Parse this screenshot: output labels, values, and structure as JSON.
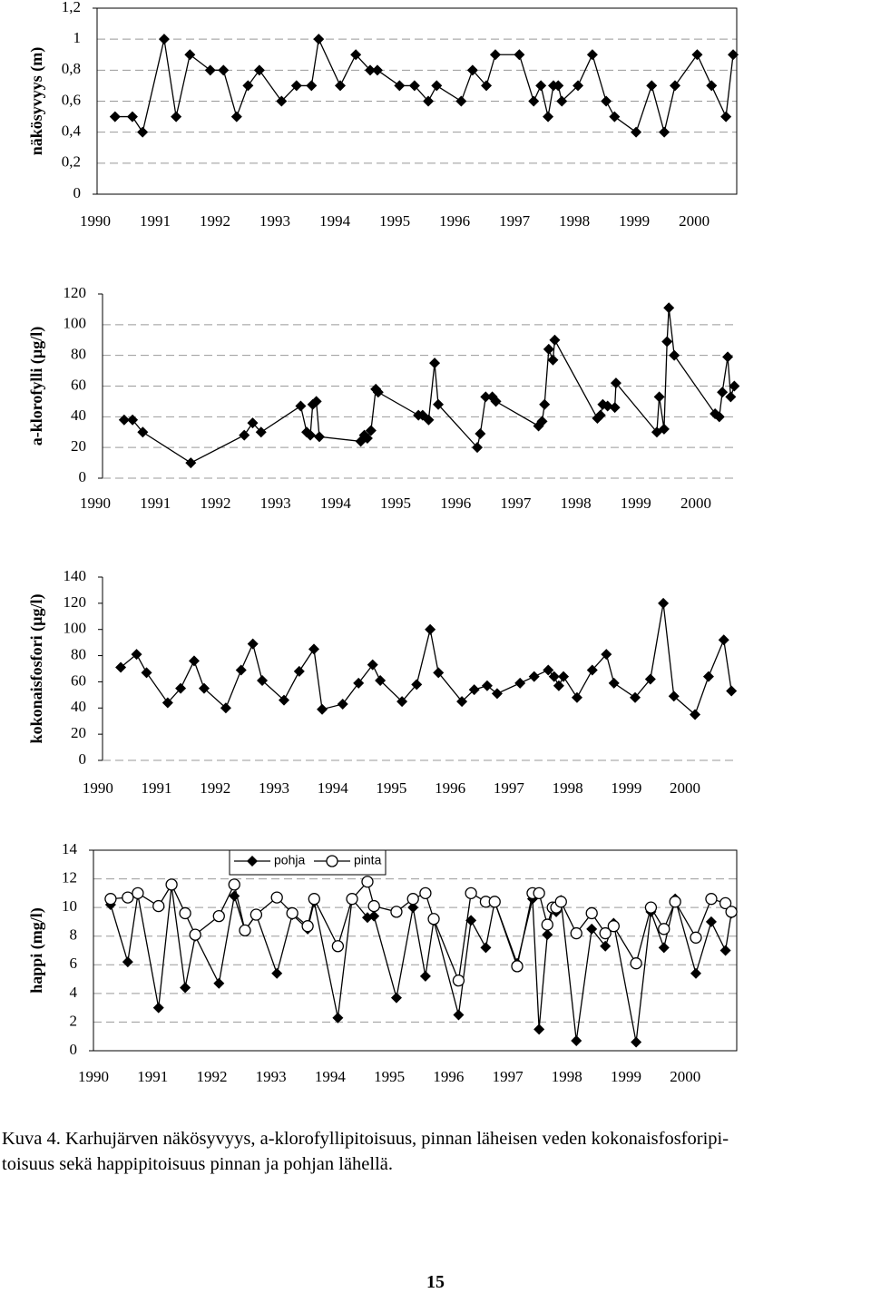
{
  "chart_data": [
    {
      "type": "line",
      "y_label": "näkösyvyys (m)",
      "color": "#000000",
      "marker": "diamond",
      "grid": true,
      "x": [
        1990.33,
        1990.62,
        1990.79,
        1991.15,
        1991.35,
        1991.58,
        1991.92,
        1992.14,
        1992.36,
        1992.55,
        1992.74,
        1993.11,
        1993.36,
        1993.61,
        1993.73,
        1994.09,
        1994.35,
        1994.59,
        1994.71,
        1995.08,
        1995.33,
        1995.56,
        1995.7,
        1996.11,
        1996.3,
        1996.53,
        1996.68,
        1997.08,
        1997.32,
        1997.44,
        1997.56,
        1997.65,
        1997.73,
        1997.79,
        1998.06,
        1998.3,
        1998.53,
        1998.67,
        1999.03,
        1999.29,
        1999.5,
        1999.68,
        2000.05,
        2000.29,
        2000.53,
        2000.65
      ],
      "values": [
        0.5,
        0.5,
        0.4,
        1.0,
        0.5,
        0.9,
        0.8,
        0.8,
        0.5,
        0.7,
        0.8,
        0.6,
        0.7,
        0.7,
        1.0,
        0.7,
        0.9,
        0.8,
        0.8,
        0.7,
        0.7,
        0.6,
        0.7,
        0.6,
        0.8,
        0.7,
        0.9,
        0.9,
        0.6,
        0.7,
        0.5,
        0.7,
        0.7,
        0.6,
        0.7,
        0.9,
        0.6,
        0.5,
        0.4,
        0.7,
        0.4,
        0.7,
        0.9,
        0.7,
        0.5,
        0.9
      ],
      "xlim": [
        1990.03,
        2000.71
      ],
      "xticks": [
        1990,
        1991,
        1992,
        1993,
        1994,
        1995,
        1996,
        1997,
        1998,
        1999,
        2000
      ],
      "ylim": [
        0,
        1.2
      ],
      "yticks": [
        0,
        {
          "value": 0.2,
          "label": "0,2"
        },
        {
          "value": 0.4,
          "label": "0,4"
        },
        {
          "value": 0.6,
          "label": "0,6"
        },
        {
          "value": 0.8,
          "label": "0,8"
        },
        1,
        {
          "value": 1.2,
          "label": "1,2"
        }
      ]
    },
    {
      "type": "line",
      "y_label": "a-klorofylli (µg/l)",
      "color": "#000000",
      "marker": "diamond",
      "grid": true,
      "x": [
        1990.48,
        1990.62,
        1990.79,
        1991.59,
        1992.48,
        1992.62,
        1992.76,
        1993.42,
        1993.52,
        1993.58,
        1993.62,
        1993.68,
        1993.73,
        1994.42,
        1994.48,
        1994.53,
        1994.59,
        1994.67,
        1994.71,
        1995.38,
        1995.45,
        1995.55,
        1995.65,
        1995.71,
        1996.36,
        1996.41,
        1996.5,
        1996.61,
        1996.67,
        1997.38,
        1997.44,
        1997.48,
        1997.55,
        1997.62,
        1997.65,
        1998.36,
        1998.41,
        1998.45,
        1998.53,
        1998.65,
        1998.67,
        1999.35,
        1999.39,
        1999.47,
        1999.52,
        1999.55,
        1999.64,
        2000.32,
        2000.39,
        2000.44,
        2000.53,
        2000.58,
        2000.64
      ],
      "values": [
        38,
        38,
        30,
        10,
        28,
        36,
        30,
        47,
        30,
        28,
        48,
        50,
        27,
        24,
        28,
        26,
        31,
        58,
        56,
        41,
        41,
        38,
        75,
        48,
        20,
        29,
        53,
        53,
        50,
        34,
        37,
        48,
        84,
        77,
        90,
        39,
        41,
        48,
        47,
        46,
        62,
        30,
        53,
        32,
        89,
        111,
        80,
        42,
        40,
        56,
        79,
        53,
        60
      ],
      "xlim": [
        1990.12,
        2000.68
      ],
      "xticks": [
        1990,
        1991,
        1992,
        1993,
        1994,
        1995,
        1996,
        1997,
        1998,
        1999,
        2000
      ],
      "ylim": [
        0,
        120
      ],
      "yticks": [
        0,
        20,
        40,
        60,
        80,
        100,
        120
      ]
    },
    {
      "type": "line",
      "y_label": "kokonaisfosfori (µg/l)",
      "color": "#000000",
      "marker": "diamond",
      "grid": false,
      "x": [
        1990.39,
        1990.66,
        1990.83,
        1991.19,
        1991.41,
        1991.64,
        1991.81,
        1992.18,
        1992.44,
        1992.64,
        1992.8,
        1993.17,
        1993.43,
        1993.68,
        1993.82,
        1994.17,
        1994.44,
        1994.68,
        1994.81,
        1995.18,
        1995.43,
        1995.66,
        1995.8,
        1996.2,
        1996.41,
        1996.63,
        1996.8,
        1997.19,
        1997.43,
        1997.67,
        1997.77,
        1997.85,
        1997.93,
        1998.16,
        1998.42,
        1998.66,
        1998.79,
        1999.15,
        1999.41,
        1999.63,
        1999.81,
        2000.17,
        2000.4,
        2000.66,
        2000.79
      ],
      "values": [
        71,
        81,
        67,
        44,
        55,
        76,
        55,
        40,
        69,
        89,
        61,
        46,
        68,
        85,
        39,
        43,
        59,
        73,
        61,
        45,
        58,
        100,
        67,
        45,
        54,
        57,
        51,
        59,
        64,
        69,
        64,
        57,
        64,
        48,
        69,
        81,
        59,
        48,
        62,
        120,
        49,
        35,
        64,
        92,
        53
      ],
      "xlim": [
        1990.08,
        2000.88
      ],
      "xticks": [
        1990,
        1991,
        1992,
        1993,
        1994,
        1995,
        1996,
        1997,
        1998,
        1999,
        2000
      ],
      "ylim": [
        0,
        140
      ],
      "yticks": [
        0,
        20,
        40,
        60,
        80,
        100,
        120,
        140
      ]
    },
    {
      "type": "line",
      "y_label": "happi (mg/l)",
      "grid": true,
      "legend": "top",
      "x": [
        1990.29,
        1990.58,
        1990.75,
        1991.1,
        1991.32,
        1991.55,
        1991.72,
        1992.12,
        1992.38,
        1992.56,
        1992.75,
        1993.1,
        1993.36,
        1993.62,
        1993.73,
        1994.13,
        1994.37,
        1994.63,
        1994.74,
        1995.12,
        1995.4,
        1995.61,
        1995.75,
        1996.17,
        1996.38,
        1996.63,
        1996.78,
        1997.16,
        1997.42,
        1997.53,
        1997.67,
        1997.76,
        1997.82,
        1997.9,
        1998.16,
        1998.42,
        1998.65,
        1998.79,
        1999.17,
        1999.42,
        1999.64,
        1999.83,
        2000.18,
        2000.44,
        2000.68,
        2000.78
      ],
      "series": [
        {
          "name": "pohja",
          "color": "#000000",
          "marker": "diamond",
          "values": [
            10.2,
            6.2,
            10.9,
            3.0,
            11.5,
            4.4,
            8.0,
            4.7,
            10.8,
            8.4,
            9.5,
            5.4,
            9.5,
            8.5,
            10.4,
            2.3,
            10.6,
            9.3,
            9.4,
            3.7,
            10.0,
            5.2,
            9.1,
            2.5,
            9.1,
            7.2,
            10.4,
            6.1,
            10.6,
            1.5,
            8.1,
            9.9,
            9.7,
            10.5,
            0.7,
            8.5,
            7.3,
            8.9,
            0.6,
            9.7,
            7.2,
            10.6,
            5.4,
            9.0,
            7.0,
            9.6
          ]
        },
        {
          "name": "pinta",
          "color": "#000000",
          "marker": "circle",
          "values": [
            10.6,
            10.7,
            11.0,
            10.1,
            11.6,
            9.6,
            8.1,
            9.4,
            11.6,
            8.4,
            9.5,
            10.7,
            9.6,
            8.7,
            10.6,
            7.3,
            10.6,
            11.8,
            10.1,
            9.7,
            10.6,
            11.0,
            9.2,
            4.9,
            11.0,
            10.4,
            10.4,
            5.9,
            11.0,
            11.0,
            8.8,
            10.0,
            10.0,
            10.4,
            8.2,
            9.6,
            8.2,
            8.7,
            6.1,
            10.0,
            8.5,
            10.4,
            7.9,
            10.6,
            10.3,
            9.7
          ]
        }
      ],
      "xlim": [
        1990,
        2000.87
      ],
      "xticks": [
        1990,
        1991,
        1992,
        1993,
        1994,
        1995,
        1996,
        1997,
        1998,
        1999,
        2000
      ],
      "ylim": [
        0,
        14
      ],
      "yticks": [
        0,
        2,
        4,
        6,
        8,
        10,
        12,
        14
      ]
    }
  ],
  "caption": [
    "Kuva 4. Karhujärven näkösyvyys, a-klorofyllipitoisuus, pinnan läheisen veden kokonaisfosforipi-",
    "toisuus sekä happipitoisuus pinnan ja pohjan lähellä."
  ],
  "page_number": "15"
}
